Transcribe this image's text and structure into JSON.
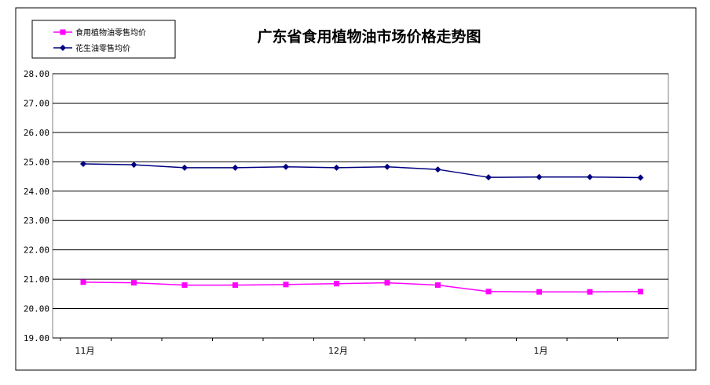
{
  "chart_data": {
    "type": "line",
    "title": "广东省食用植物油市场价格走势图",
    "xlabel": "",
    "ylabel": "",
    "x_tick_labels": [
      {
        "index": 0,
        "label": "11月"
      },
      {
        "index": 5,
        "label": "12月"
      },
      {
        "index": 9,
        "label": "1月"
      }
    ],
    "point_count": 12,
    "y_tick_labels": [
      "19.00",
      "20.00",
      "21.00",
      "22.00",
      "23.00",
      "24.00",
      "25.00",
      "26.00",
      "27.00",
      "28.00"
    ],
    "ylim": [
      19,
      28
    ],
    "grid": true,
    "legend_position": "top-left",
    "series": [
      {
        "name": "食用植物油零售均价",
        "color": "#ff00ff",
        "marker": "square",
        "values": [
          20.9,
          20.88,
          20.8,
          20.8,
          20.82,
          20.85,
          20.88,
          20.8,
          20.58,
          20.57,
          20.57,
          20.58
        ]
      },
      {
        "name": "花生油零售均价",
        "color": "#000080",
        "marker": "diamond",
        "values": [
          24.93,
          24.9,
          24.8,
          24.8,
          24.83,
          24.8,
          24.83,
          24.74,
          24.47,
          24.48,
          24.48,
          24.46
        ]
      }
    ]
  }
}
